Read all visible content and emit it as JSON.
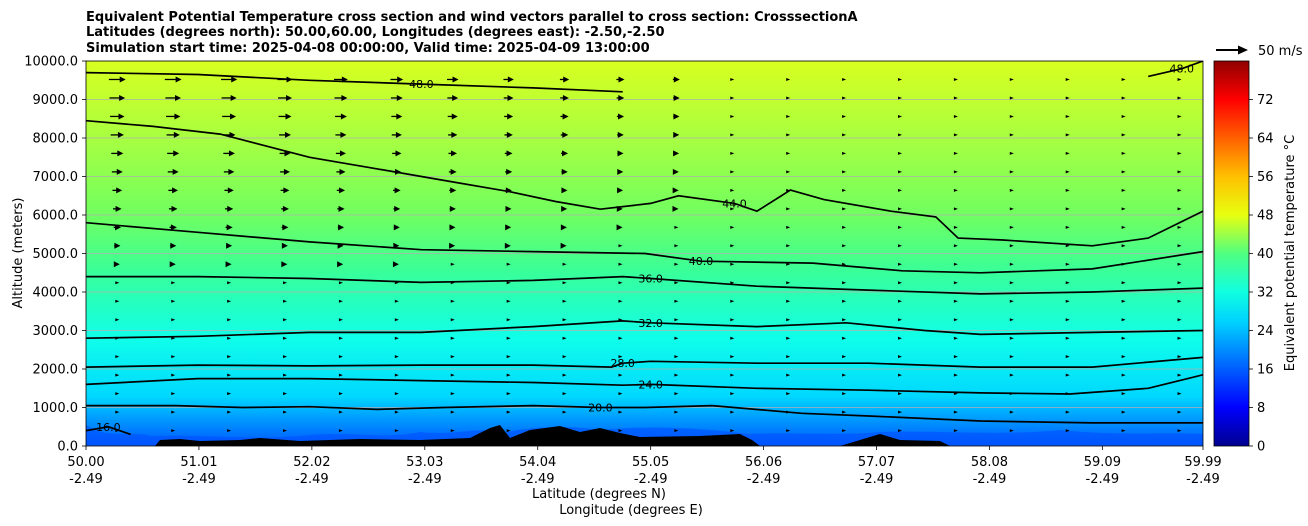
{
  "chart_data": {
    "type": "contour-cross-section",
    "title": [
      "Equivalent Potential Temperature cross section and wind vectors parallel to cross section: CrosssectionA",
      "Latitudes (degrees north): 50.00,60.00, Longitudes (degrees east): -2.50,-2.50",
      "Simulation start time: 2025-04-08 00:00:00, Valid time: 2025-04-09 13:00:00"
    ],
    "xlabel_lat": "Latitude (degrees N)",
    "xlabel_lon": "Longitude (degrees E)",
    "ylabel": "Altitude (meters)",
    "xlim": [
      50.0,
      59.99
    ],
    "ylim": [
      0,
      10000
    ],
    "x_ticks": [
      {
        "value": 50.0,
        "lat": "50.00",
        "lon": "-2.49"
      },
      {
        "value": 51.01,
        "lat": "51.01",
        "lon": "-2.49"
      },
      {
        "value": 52.02,
        "lat": "52.02",
        "lon": "-2.49"
      },
      {
        "value": 53.03,
        "lat": "53.03",
        "lon": "-2.49"
      },
      {
        "value": 54.04,
        "lat": "54.04",
        "lon": "-2.49"
      },
      {
        "value": 55.05,
        "lat": "55.05",
        "lon": "-2.49"
      },
      {
        "value": 56.06,
        "lat": "56.06",
        "lon": "-2.49"
      },
      {
        "value": 57.07,
        "lat": "57.07",
        "lon": "-2.49"
      },
      {
        "value": 58.08,
        "lat": "58.08",
        "lon": "-2.49"
      },
      {
        "value": 59.09,
        "lat": "59.09",
        "lon": "-2.49"
      },
      {
        "value": 59.99,
        "lat": "59.99",
        "lon": "-2.49"
      }
    ],
    "y_ticks": [
      {
        "value": 0,
        "label": "0.0"
      },
      {
        "value": 1000,
        "label": "1000.0"
      },
      {
        "value": 2000,
        "label": "2000.0"
      },
      {
        "value": 3000,
        "label": "3000.0"
      },
      {
        "value": 4000,
        "label": "4000.0"
      },
      {
        "value": 5000,
        "label": "5000.0"
      },
      {
        "value": 6000,
        "label": "6000.0"
      },
      {
        "value": 7000,
        "label": "7000.0"
      },
      {
        "value": 8000,
        "label": "8000.0"
      },
      {
        "value": 9000,
        "label": "9000.0"
      },
      {
        "value": 10000,
        "label": "10000.0"
      }
    ],
    "horizontal_grid": true,
    "colorbar": {
      "label": "Equivalent potential temperature °C",
      "range": [
        0,
        80
      ],
      "ticks": [
        {
          "value": 0,
          "label": "0"
        },
        {
          "value": 8,
          "label": "8"
        },
        {
          "value": 16,
          "label": "16"
        },
        {
          "value": 24,
          "label": "24"
        },
        {
          "value": 32,
          "label": "32"
        },
        {
          "value": 40,
          "label": "40"
        },
        {
          "value": 48,
          "label": "48"
        },
        {
          "value": 56,
          "label": "56"
        },
        {
          "value": 64,
          "label": "64"
        },
        {
          "value": 72,
          "label": "72"
        }
      ]
    },
    "wind_key": {
      "label": "50 m/s",
      "speed": 50
    },
    "contours": [
      {
        "value": 16,
        "label": "16.0",
        "points": [
          [
            50.0,
            400
          ],
          [
            50.2,
            500
          ],
          [
            50.4,
            300
          ]
        ]
      },
      {
        "value": 20,
        "label": "20.0",
        "points": [
          [
            50.0,
            1050
          ],
          [
            50.8,
            1050
          ],
          [
            51.4,
            1000
          ],
          [
            52.0,
            1020
          ],
          [
            52.6,
            950
          ],
          [
            53.2,
            1000
          ],
          [
            54.0,
            1050
          ],
          [
            54.6,
            1000
          ],
          [
            55.0,
            1000
          ],
          [
            55.6,
            1050
          ],
          [
            56.4,
            850
          ],
          [
            57.0,
            780
          ],
          [
            58.0,
            650
          ],
          [
            59.0,
            600
          ],
          [
            59.99,
            600
          ]
        ]
      },
      {
        "value": 24,
        "label": "24.0",
        "points": [
          [
            50.0,
            1600
          ],
          [
            51.0,
            1750
          ],
          [
            52.0,
            1750
          ],
          [
            53.0,
            1700
          ],
          [
            54.0,
            1650
          ],
          [
            54.8,
            1580
          ],
          [
            55.05,
            1600
          ],
          [
            56.0,
            1500
          ],
          [
            57.0,
            1450
          ],
          [
            58.0,
            1380
          ],
          [
            58.8,
            1350
          ],
          [
            59.5,
            1500
          ],
          [
            59.99,
            1850
          ]
        ]
      },
      {
        "value": 28,
        "label": "28.0",
        "points": [
          [
            50.0,
            2050
          ],
          [
            51.0,
            2100
          ],
          [
            52.0,
            2080
          ],
          [
            53.0,
            2100
          ],
          [
            54.0,
            2100
          ],
          [
            54.7,
            2050
          ],
          [
            54.8,
            2150
          ],
          [
            55.05,
            2200
          ],
          [
            56.0,
            2150
          ],
          [
            57.0,
            2150
          ],
          [
            58.0,
            2050
          ],
          [
            59.0,
            2050
          ],
          [
            59.99,
            2300
          ]
        ]
      },
      {
        "value": 32,
        "label": "32.0",
        "points": [
          [
            50.0,
            2800
          ],
          [
            51.0,
            2850
          ],
          [
            52.0,
            2950
          ],
          [
            53.0,
            2950
          ],
          [
            54.0,
            3100
          ],
          [
            54.8,
            3250
          ],
          [
            55.05,
            3200
          ],
          [
            56.0,
            3100
          ],
          [
            56.8,
            3200
          ],
          [
            57.5,
            3000
          ],
          [
            58.0,
            2900
          ],
          [
            59.0,
            2950
          ],
          [
            59.99,
            3000
          ]
        ]
      },
      {
        "value": 36,
        "label": "36.0",
        "points": [
          [
            50.0,
            4400
          ],
          [
            51.0,
            4400
          ],
          [
            52.0,
            4350
          ],
          [
            53.0,
            4250
          ],
          [
            54.0,
            4300
          ],
          [
            54.8,
            4400
          ],
          [
            55.05,
            4350
          ],
          [
            56.0,
            4150
          ],
          [
            57.0,
            4050
          ],
          [
            58.0,
            3950
          ],
          [
            59.0,
            4000
          ],
          [
            59.99,
            4100
          ]
        ]
      },
      {
        "value": 40,
        "label": "40.0",
        "points": [
          [
            50.0,
            5800
          ],
          [
            51.0,
            5550
          ],
          [
            52.0,
            5300
          ],
          [
            53.0,
            5100
          ],
          [
            54.0,
            5050
          ],
          [
            55.0,
            5000
          ],
          [
            55.5,
            4800
          ],
          [
            56.5,
            4750
          ],
          [
            57.3,
            4550
          ],
          [
            58.0,
            4500
          ],
          [
            59.0,
            4600
          ],
          [
            59.99,
            5050
          ]
        ]
      },
      {
        "value": 44,
        "label": "44.0",
        "points": [
          [
            50.0,
            8450
          ],
          [
            50.6,
            8300
          ],
          [
            51.2,
            8100
          ],
          [
            52.0,
            7500
          ],
          [
            52.6,
            7200
          ],
          [
            53.2,
            6900
          ],
          [
            53.8,
            6600
          ],
          [
            54.2,
            6350
          ],
          [
            54.6,
            6150
          ],
          [
            55.05,
            6300
          ],
          [
            55.3,
            6500
          ],
          [
            55.8,
            6300
          ],
          [
            56.0,
            6100
          ],
          [
            56.3,
            6650
          ],
          [
            56.6,
            6400
          ],
          [
            57.2,
            6100
          ],
          [
            57.6,
            5950
          ],
          [
            57.8,
            5400
          ],
          [
            58.2,
            5350
          ],
          [
            59.0,
            5200
          ],
          [
            59.5,
            5400
          ],
          [
            59.99,
            6100
          ]
        ]
      },
      {
        "value": 48,
        "label": "48.0",
        "points": [
          [
            50.0,
            9700
          ],
          [
            51.0,
            9650
          ],
          [
            52.0,
            9500
          ],
          [
            53.0,
            9400
          ],
          [
            54.0,
            9300
          ],
          [
            54.8,
            9200
          ]
        ]
      },
      {
        "value": 48,
        "label": "48.0",
        "points": [
          [
            59.5,
            9600
          ],
          [
            59.8,
            9800
          ],
          [
            59.99,
            10000
          ]
        ]
      }
    ]
  }
}
